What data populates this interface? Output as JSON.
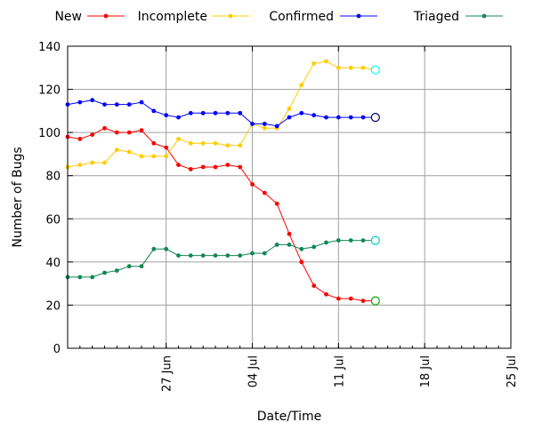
{
  "chart_data": {
    "type": "line",
    "title": "",
    "xlabel": "Date/Time",
    "ylabel": "Number of Bugs",
    "ylim": [
      0,
      140
    ],
    "yticks": [
      0,
      20,
      40,
      60,
      80,
      100,
      120,
      140
    ],
    "xlim": [
      "2011-06-19",
      "2011-07-25"
    ],
    "xticks": [
      {
        "date": "2011-06-27",
        "label": "27 Jun"
      },
      {
        "date": "2011-07-04",
        "label": "04 Jul"
      },
      {
        "date": "2011-07-11",
        "label": "11 Jul"
      },
      {
        "date": "2011-07-18",
        "label": "18 Jul"
      },
      {
        "date": "2011-07-25",
        "label": "25 Jul"
      }
    ],
    "grid": true,
    "legend_position": "top",
    "x": [
      "2011-06-19",
      "2011-06-20",
      "2011-06-21",
      "2011-06-22",
      "2011-06-23",
      "2011-06-24",
      "2011-06-25",
      "2011-06-26",
      "2011-06-27",
      "2011-06-28",
      "2011-06-29",
      "2011-06-30",
      "2011-07-01",
      "2011-07-02",
      "2011-07-03",
      "2011-07-04",
      "2011-07-05",
      "2011-07-06",
      "2011-07-07",
      "2011-07-08",
      "2011-07-09",
      "2011-07-10",
      "2011-07-11",
      "2011-07-12",
      "2011-07-13",
      "2011-07-14",
      "2011-07-15",
      "2011-07-16",
      "2011-07-17",
      "2011-07-18",
      "2011-07-19",
      "2011-07-20",
      "2011-07-21",
      "2011-07-22"
    ],
    "series": [
      {
        "name": "New",
        "color": "#ff0000",
        "values": [
          98,
          97,
          99,
          102,
          100,
          100,
          101,
          95,
          93,
          85,
          83,
          84,
          84,
          85,
          84,
          76,
          72,
          67,
          53,
          40,
          29,
          25,
          23,
          23,
          22,
          22,
          null,
          null,
          null,
          null,
          null,
          null,
          null,
          null
        ],
        "latest_marker_color": "#00aa00"
      },
      {
        "name": "Incomplete",
        "color": "#ffcc00",
        "values": [
          84,
          85,
          86,
          86,
          92,
          91,
          89,
          89,
          89,
          97,
          95,
          95,
          95,
          94,
          94,
          104,
          102,
          102,
          111,
          122,
          132,
          133,
          130,
          130,
          130,
          129,
          null,
          null,
          null,
          null,
          null,
          null,
          null,
          null
        ],
        "latest_marker_color": "#00ffff"
      },
      {
        "name": "Confirmed",
        "color": "#0000ff",
        "values": [
          113,
          114,
          115,
          113,
          113,
          113,
          114,
          110,
          108,
          107,
          109,
          109,
          109,
          109,
          109,
          104,
          104,
          103,
          107,
          109,
          108,
          107,
          107,
          107,
          107,
          107,
          null,
          null,
          null,
          null,
          null,
          null,
          null,
          null
        ],
        "latest_marker_color": "#000066"
      },
      {
        "name": "Triaged",
        "color": "#118855",
        "values": [
          33,
          33,
          33,
          35,
          36,
          38,
          38,
          46,
          46,
          43,
          43,
          43,
          43,
          43,
          43,
          44,
          44,
          48,
          48,
          46,
          47,
          49,
          50,
          50,
          50,
          50,
          null,
          null,
          null,
          null,
          null,
          null,
          null,
          null
        ],
        "latest_marker_color": "#00cccc"
      }
    ]
  }
}
